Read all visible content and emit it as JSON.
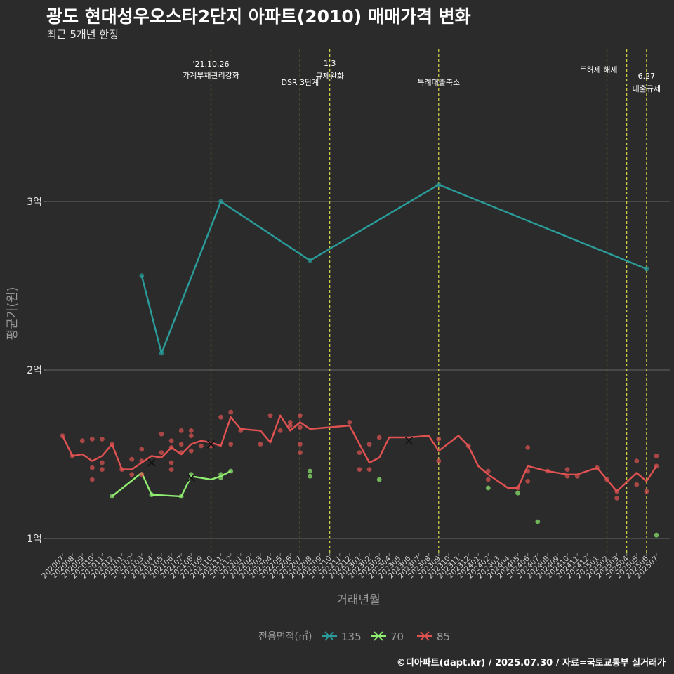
{
  "chart_data": {
    "type": "line",
    "title": "광도 현대성우오스타2단지 아파트(2010) 매매가격 변화",
    "subtitle": "최근 5개년 한정",
    "xlabel": "거래년월",
    "ylabel": "평균가(원)",
    "yticks": [
      {
        "value": 1,
        "label": "1억"
      },
      {
        "value": 2,
        "label": "2억"
      },
      {
        "value": 3,
        "label": "3억"
      }
    ],
    "ylim": [
      0.9,
      3.2
    ],
    "grid": true,
    "x_categories": [
      "202007",
      "202008",
      "202009",
      "202010",
      "202011",
      "202012",
      "202101",
      "202102",
      "202103",
      "202104",
      "202105",
      "202106",
      "202107",
      "202108",
      "202109",
      "202110",
      "202111",
      "202112",
      "202201",
      "202202",
      "202203",
      "202204",
      "202205",
      "202206",
      "202207",
      "202208",
      "202209",
      "202210",
      "202211",
      "202212",
      "202301",
      "202302",
      "202303",
      "202304",
      "202305",
      "202306",
      "202307",
      "202308",
      "202309",
      "202310",
      "202311",
      "202312",
      "202401",
      "202402",
      "202403",
      "202404",
      "202405",
      "202406",
      "202407",
      "202408",
      "202409",
      "202410",
      "202411",
      "202412",
      "202501",
      "202502",
      "202503",
      "202504",
      "202505",
      "202506",
      "202507"
    ],
    "legend": {
      "title": "전용면적(㎡)",
      "position": "bottom"
    },
    "series": [
      {
        "name": "135",
        "color": "#2a9d9a",
        "line": [
          [
            "202103",
            2.56
          ],
          [
            "202105",
            2.1
          ],
          [
            "202111",
            3.0
          ],
          [
            "202208",
            2.65
          ],
          [
            "202309",
            3.1
          ],
          [
            "202506",
            2.6
          ]
        ],
        "points": [
          [
            "202103",
            2.56
          ],
          [
            "202105",
            2.1
          ],
          [
            "202111",
            3.0
          ],
          [
            "202208",
            2.65
          ],
          [
            "202309",
            3.1
          ],
          [
            "202506",
            2.6
          ]
        ],
        "means": []
      },
      {
        "name": "70",
        "color": "#90ee70",
        "line": [
          [
            "202012",
            1.25
          ],
          [
            "202103",
            1.39
          ],
          [
            "202104",
            1.26
          ],
          [
            "202107",
            1.25
          ],
          [
            "202108",
            1.37
          ],
          [
            "202110",
            1.35
          ],
          [
            "202111",
            1.37
          ],
          [
            "202112",
            1.4
          ]
        ],
        "points": [
          [
            "202012",
            1.25
          ],
          [
            "202104",
            1.26
          ],
          [
            "202107",
            1.25
          ],
          [
            "202108",
            1.38
          ],
          [
            "202111",
            1.38
          ],
          [
            "202111",
            1.36
          ],
          [
            "202112",
            1.4
          ],
          [
            "202208",
            1.4
          ],
          [
            "202208",
            1.37
          ],
          [
            "202303",
            1.35
          ],
          [
            "202402",
            1.3
          ],
          [
            "202405",
            1.27
          ],
          [
            "202407",
            1.1
          ],
          [
            "202507",
            1.02
          ]
        ],
        "means": [
          [
            "202108",
            1.36
          ]
        ]
      },
      {
        "name": "85",
        "color": "#e05252",
        "line": [
          [
            "202007",
            1.61
          ],
          [
            "202008",
            1.49
          ],
          [
            "202009",
            1.5
          ],
          [
            "202010",
            1.46
          ],
          [
            "202011",
            1.49
          ],
          [
            "202012",
            1.56
          ],
          [
            "202101",
            1.41
          ],
          [
            "202102",
            1.41
          ],
          [
            "202103",
            1.45
          ],
          [
            "202104",
            1.49
          ],
          [
            "202105",
            1.48
          ],
          [
            "202106",
            1.54
          ],
          [
            "202107",
            1.5
          ],
          [
            "202108",
            1.56
          ],
          [
            "202109",
            1.58
          ],
          [
            "202110",
            1.57
          ],
          [
            "202111",
            1.55
          ],
          [
            "202112",
            1.72
          ],
          [
            "202201",
            1.65
          ],
          [
            "202203",
            1.64
          ],
          [
            "202204",
            1.57
          ],
          [
            "202205",
            1.73
          ],
          [
            "202206",
            1.64
          ],
          [
            "202207",
            1.69
          ],
          [
            "202208",
            1.65
          ],
          [
            "202212",
            1.67
          ],
          [
            "202302",
            1.45
          ],
          [
            "202303",
            1.48
          ],
          [
            "202304",
            1.6
          ],
          [
            "202306",
            1.6
          ],
          [
            "202308",
            1.61
          ],
          [
            "202309",
            1.52
          ],
          [
            "202311",
            1.61
          ],
          [
            "202312",
            1.55
          ],
          [
            "202401",
            1.43
          ],
          [
            "202402",
            1.38
          ],
          [
            "202404",
            1.3
          ],
          [
            "202405",
            1.3
          ],
          [
            "202406",
            1.43
          ],
          [
            "202408",
            1.4
          ],
          [
            "202410",
            1.38
          ],
          [
            "202411",
            1.38
          ],
          [
            "202501",
            1.42
          ],
          [
            "202502",
            1.35
          ],
          [
            "202503",
            1.28
          ],
          [
            "202505",
            1.39
          ],
          [
            "202506",
            1.34
          ],
          [
            "202507",
            1.43
          ]
        ],
        "points": [
          [
            "202007",
            1.61
          ],
          [
            "202008",
            1.49
          ],
          [
            "202009",
            1.58
          ],
          [
            "202010",
            1.59
          ],
          [
            "202010",
            1.42
          ],
          [
            "202010",
            1.35
          ],
          [
            "202011",
            1.59
          ],
          [
            "202011",
            1.45
          ],
          [
            "202011",
            1.41
          ],
          [
            "202012",
            1.56
          ],
          [
            "202101",
            1.41
          ],
          [
            "202102",
            1.38
          ],
          [
            "202102",
            1.47
          ],
          [
            "202103",
            1.53
          ],
          [
            "202103",
            1.46
          ],
          [
            "202103",
            1.38
          ],
          [
            "202105",
            1.62
          ],
          [
            "202105",
            1.51
          ],
          [
            "202106",
            1.58
          ],
          [
            "202106",
            1.54
          ],
          [
            "202106",
            1.45
          ],
          [
            "202106",
            1.41
          ],
          [
            "202107",
            1.64
          ],
          [
            "202107",
            1.51
          ],
          [
            "202107",
            1.56
          ],
          [
            "202108",
            1.64
          ],
          [
            "202108",
            1.61
          ],
          [
            "202108",
            1.52
          ],
          [
            "202109",
            1.55
          ],
          [
            "202110",
            1.55
          ],
          [
            "202111",
            1.72
          ],
          [
            "202112",
            1.75
          ],
          [
            "202112",
            1.56
          ],
          [
            "202201",
            1.64
          ],
          [
            "202203",
            1.56
          ],
          [
            "202204",
            1.73
          ],
          [
            "202205",
            1.64
          ],
          [
            "202206",
            1.69
          ],
          [
            "202206",
            1.67
          ],
          [
            "202207",
            1.73
          ],
          [
            "202207",
            1.66
          ],
          [
            "202207",
            1.56
          ],
          [
            "202207",
            1.51
          ],
          [
            "202212",
            1.69
          ],
          [
            "202301",
            1.51
          ],
          [
            "202301",
            1.41
          ],
          [
            "202302",
            1.56
          ],
          [
            "202302",
            1.41
          ],
          [
            "202303",
            1.6
          ],
          [
            "202309",
            1.59
          ],
          [
            "202309",
            1.46
          ],
          [
            "202312",
            1.55
          ],
          [
            "202402",
            1.4
          ],
          [
            "202402",
            1.35
          ],
          [
            "202405",
            1.3
          ],
          [
            "202406",
            1.54
          ],
          [
            "202406",
            1.4
          ],
          [
            "202406",
            1.34
          ],
          [
            "202408",
            1.4
          ],
          [
            "202410",
            1.41
          ],
          [
            "202410",
            1.37
          ],
          [
            "202411",
            1.37
          ],
          [
            "202501",
            1.42
          ],
          [
            "202502",
            1.35
          ],
          [
            "202503",
            1.28
          ],
          [
            "202503",
            1.24
          ],
          [
            "202505",
            1.46
          ],
          [
            "202505",
            1.32
          ],
          [
            "202506",
            1.28
          ],
          [
            "202507",
            1.49
          ],
          [
            "202507",
            1.43
          ]
        ],
        "means": [
          [
            "202104",
            1.45
          ],
          [
            "202110",
            1.56
          ],
          [
            "202306",
            1.58
          ]
        ]
      }
    ],
    "annotations": [
      {
        "x": "202110",
        "lines": [
          "'21.10.26",
          "가계부채관리강화"
        ]
      },
      {
        "x": "202207",
        "lines": [
          "DSR 3단계"
        ]
      },
      {
        "x": "202210",
        "lines": [
          "1.3",
          "규제완화"
        ]
      },
      {
        "x": "202309",
        "lines": [
          "특례대출축소"
        ]
      },
      {
        "x": "202502",
        "lines": [
          "토허제 해제"
        ]
      },
      {
        "x": "202504",
        "lines": []
      },
      {
        "x": "202506",
        "lines": [
          "6.27",
          "대출규제"
        ]
      }
    ]
  },
  "caption": "©디아파트(dapt.kr) / 2025.07.30 / 자료=국토교통부 실거래가"
}
